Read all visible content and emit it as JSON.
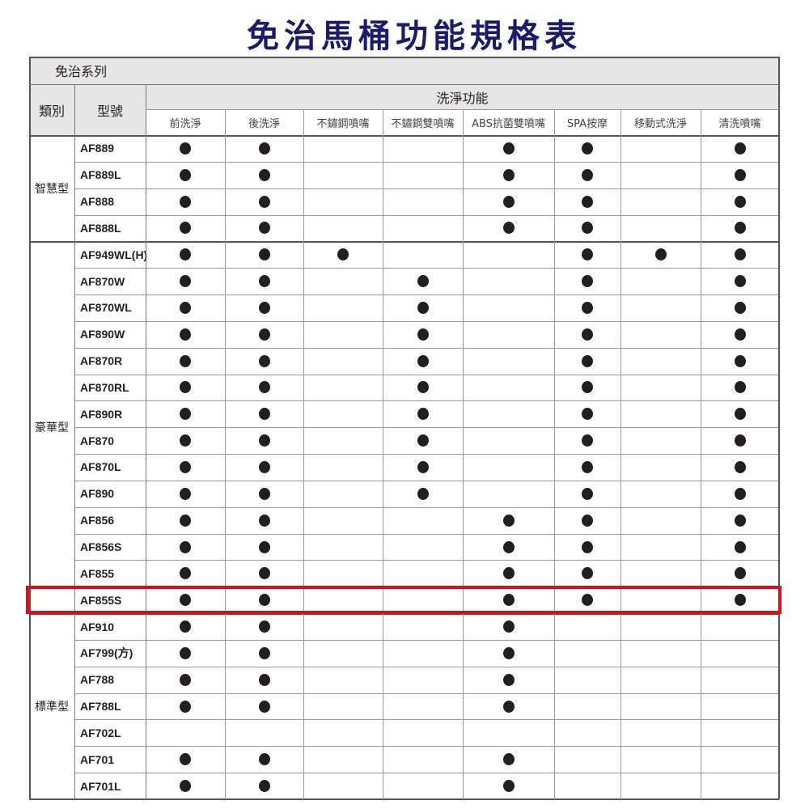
{
  "title": "免治馬桶功能規格表",
  "series_label": "免治系列",
  "headers": {
    "category": "類別",
    "model": "型號",
    "group": "洗淨功能",
    "features": [
      "前洗淨",
      "後洗淨",
      "不鏽鋼噴嘴",
      "不鏽鋼雙噴嘴",
      "ABS抗菌雙噴嘴",
      "SPA按摩",
      "移動式洗淨",
      "清洗噴嘴"
    ]
  },
  "highlighted_model": "AF855S",
  "highlight_color": "#d7101a",
  "groups": [
    {
      "category": "智慧型",
      "rows": [
        {
          "model": "AF889",
          "f": [
            1,
            1,
            0,
            0,
            1,
            1,
            0,
            1
          ]
        },
        {
          "model": "AF889L",
          "f": [
            1,
            1,
            0,
            0,
            1,
            1,
            0,
            1
          ]
        },
        {
          "model": "AF888",
          "f": [
            1,
            1,
            0,
            0,
            1,
            1,
            0,
            1
          ]
        },
        {
          "model": "AF888L",
          "f": [
            1,
            1,
            0,
            0,
            1,
            1,
            0,
            1
          ]
        }
      ]
    },
    {
      "category": "豪華型",
      "rows": [
        {
          "model": "AF949WL(H)",
          "f": [
            1,
            1,
            1,
            0,
            0,
            1,
            1,
            1
          ]
        },
        {
          "model": "AF870W",
          "f": [
            1,
            1,
            0,
            1,
            0,
            1,
            0,
            1
          ]
        },
        {
          "model": "AF870WL",
          "f": [
            1,
            1,
            0,
            1,
            0,
            1,
            0,
            1
          ]
        },
        {
          "model": "AF890W",
          "f": [
            1,
            1,
            0,
            1,
            0,
            1,
            0,
            1
          ]
        },
        {
          "model": "AF870R",
          "f": [
            1,
            1,
            0,
            1,
            0,
            1,
            0,
            1
          ]
        },
        {
          "model": "AF870RL",
          "f": [
            1,
            1,
            0,
            1,
            0,
            1,
            0,
            1
          ]
        },
        {
          "model": "AF890R",
          "f": [
            1,
            1,
            0,
            1,
            0,
            1,
            0,
            1
          ]
        },
        {
          "model": "AF870",
          "f": [
            1,
            1,
            0,
            1,
            0,
            1,
            0,
            1
          ]
        },
        {
          "model": "AF870L",
          "f": [
            1,
            1,
            0,
            1,
            0,
            1,
            0,
            1
          ]
        },
        {
          "model": "AF890",
          "f": [
            1,
            1,
            0,
            1,
            0,
            1,
            0,
            1
          ]
        },
        {
          "model": "AF856",
          "f": [
            1,
            1,
            0,
            0,
            1,
            1,
            0,
            1
          ]
        },
        {
          "model": "AF856S",
          "f": [
            1,
            1,
            0,
            0,
            1,
            1,
            0,
            1
          ]
        },
        {
          "model": "AF855",
          "f": [
            1,
            1,
            0,
            0,
            1,
            1,
            0,
            1
          ]
        },
        {
          "model": "AF855S",
          "f": [
            1,
            1,
            0,
            0,
            1,
            1,
            0,
            1
          ]
        }
      ]
    },
    {
      "category": "標準型",
      "rows": [
        {
          "model": "AF910",
          "f": [
            1,
            1,
            0,
            0,
            1,
            0,
            0,
            0
          ]
        },
        {
          "model": "AF799(方)",
          "f": [
            1,
            1,
            0,
            0,
            1,
            0,
            0,
            0
          ]
        },
        {
          "model": "AF788",
          "f": [
            1,
            1,
            0,
            0,
            1,
            0,
            0,
            0
          ]
        },
        {
          "model": "AF788L",
          "f": [
            1,
            1,
            0,
            0,
            1,
            0,
            0,
            0
          ]
        },
        {
          "model": "AF702L",
          "f": [
            0,
            0,
            0,
            0,
            0,
            0,
            0,
            0
          ]
        },
        {
          "model": "AF701",
          "f": [
            1,
            1,
            0,
            0,
            1,
            0,
            0,
            0
          ]
        },
        {
          "model": "AF701L",
          "f": [
            1,
            1,
            0,
            0,
            1,
            0,
            0,
            0
          ]
        }
      ]
    }
  ]
}
